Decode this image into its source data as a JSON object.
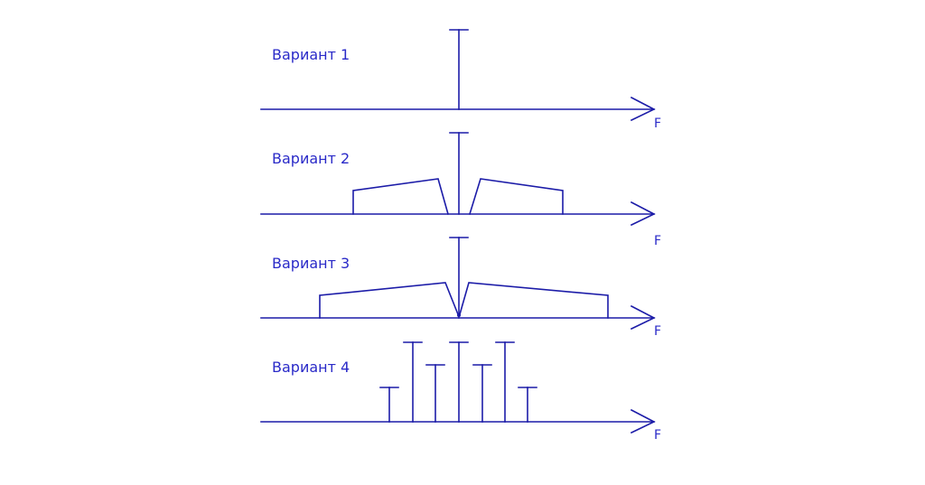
{
  "diagram": {
    "color": "#1c1ca8",
    "axis_label": "F",
    "variants": [
      {
        "label": "Вариант 1"
      },
      {
        "label": "Вариант 2"
      },
      {
        "label": "Вариант 3"
      },
      {
        "label": "Вариант 4"
      }
    ]
  }
}
